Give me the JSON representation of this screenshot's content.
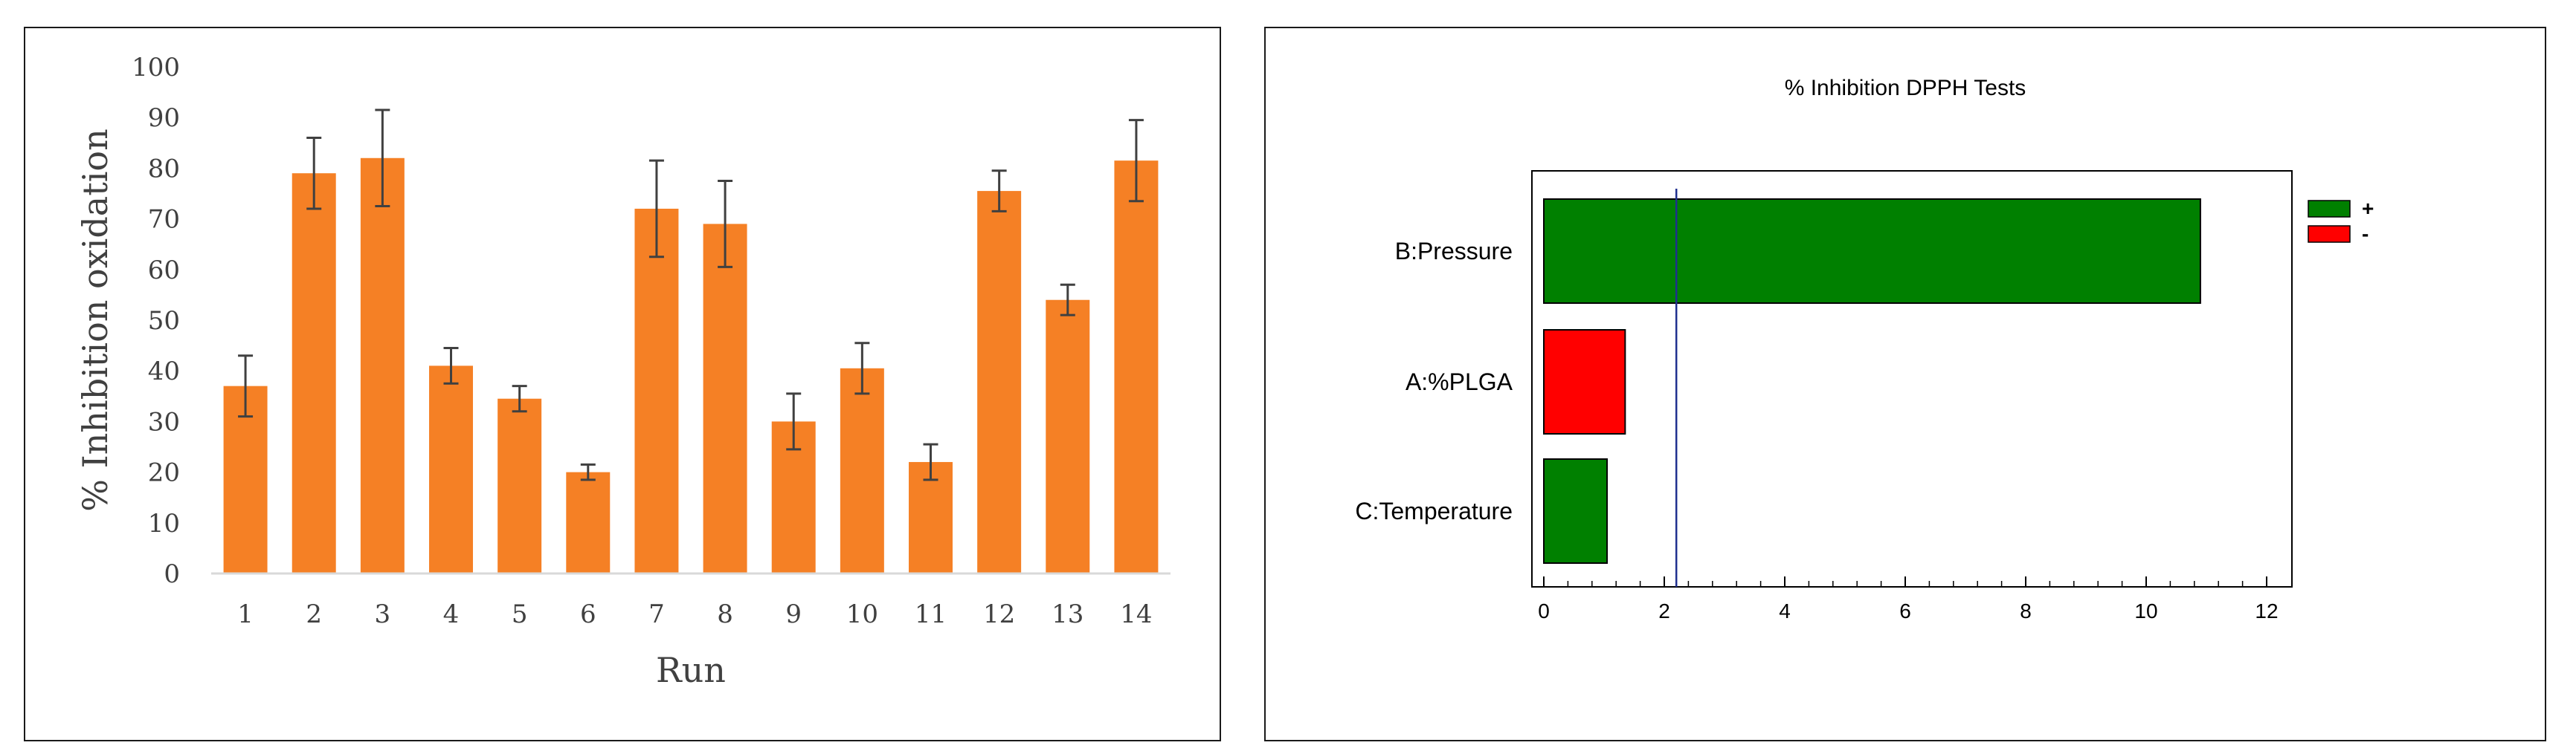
{
  "chart_data": [
    {
      "type": "bar",
      "title": "",
      "xlabel": "Run",
      "ylabel": "% Inhibition oxidation",
      "ylim": [
        0,
        100
      ],
      "yticks": [
        0,
        10,
        20,
        30,
        40,
        50,
        60,
        70,
        80,
        90,
        100
      ],
      "categories": [
        "1",
        "2",
        "3",
        "4",
        "5",
        "6",
        "7",
        "8",
        "9",
        "10",
        "11",
        "12",
        "13",
        "14"
      ],
      "values": [
        37,
        79,
        82,
        41,
        34.5,
        20,
        72,
        69,
        30,
        40.5,
        22,
        75.5,
        54,
        81.5
      ],
      "errors": [
        6,
        7,
        9.5,
        3.5,
        2.5,
        1.5,
        9.5,
        8.5,
        5.5,
        5,
        3.5,
        4,
        3,
        8
      ],
      "bar_color": "#F58025",
      "error_color": "#404040",
      "grid": false
    },
    {
      "type": "bar",
      "orientation": "horizontal",
      "title": "% Inhibition DPPH Tests",
      "categories": [
        "B:Pressure",
        "A:%PLGA",
        "C:Temperature"
      ],
      "values": [
        10.9,
        1.35,
        1.05
      ],
      "signs": [
        "+",
        "-",
        "+"
      ],
      "xlim": [
        0,
        12
      ],
      "xticks": [
        0,
        2,
        4,
        6,
        8,
        10,
        12
      ],
      "reference_line": 2.2,
      "reference_color": "#1F2F8F",
      "legend": [
        {
          "label": "+",
          "color": "#008000"
        },
        {
          "label": "-",
          "color": "#FF0000"
        }
      ],
      "legend_position": "top-right"
    }
  ]
}
